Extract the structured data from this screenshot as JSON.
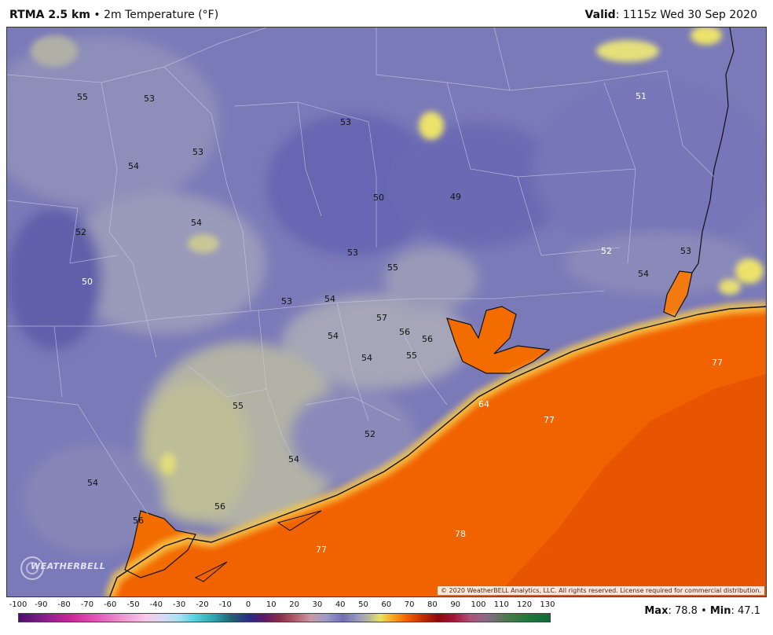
{
  "header": {
    "model": "RTMA 2.5 km",
    "separator": "•",
    "variable": "2m Temperature (°F)",
    "valid_label": "Valid",
    "valid_time": ": 1115z Wed 30 Sep 2020"
  },
  "map": {
    "copyright": "© 2020 WeatherBELL Analytics, LLC. All rights reserved. License required for commercial distribution.",
    "logo_text": "WEATHERBELL",
    "point_labels": [
      {
        "text": "55"
      },
      {
        "text": "53"
      },
      {
        "text": "53"
      },
      {
        "text": "54"
      },
      {
        "text": "53"
      },
      {
        "text": "50"
      },
      {
        "text": "49"
      },
      {
        "text": "51"
      },
      {
        "text": "52"
      },
      {
        "text": "54"
      },
      {
        "text": "50"
      },
      {
        "text": "53"
      },
      {
        "text": "55"
      },
      {
        "text": "53"
      },
      {
        "text": "54"
      },
      {
        "text": "57"
      },
      {
        "text": "56"
      },
      {
        "text": "56"
      },
      {
        "text": "54"
      },
      {
        "text": "54"
      },
      {
        "text": "55"
      },
      {
        "text": "52"
      },
      {
        "text": "53"
      },
      {
        "text": "54"
      },
      {
        "text": "64"
      },
      {
        "text": "77"
      },
      {
        "text": "77"
      },
      {
        "text": "55"
      },
      {
        "text": "52"
      },
      {
        "text": "54"
      },
      {
        "text": "54"
      },
      {
        "text": "56"
      },
      {
        "text": "56"
      },
      {
        "text": "77"
      },
      {
        "text": "78"
      }
    ]
  },
  "legend": {
    "ticks": [
      "-100",
      "-90",
      "-80",
      "-70",
      "-60",
      "-50",
      "-40",
      "-30",
      "-20",
      "-10",
      "0",
      "10",
      "20",
      "30",
      "40",
      "50",
      "60",
      "70",
      "80",
      "90",
      "100",
      "110",
      "120",
      "130"
    ],
    "range": [
      -100,
      130
    ]
  },
  "stats": {
    "max_label": "Max",
    "max_value": ": 78.8",
    "separator": " • ",
    "min_label": "Min",
    "min_value": ": 47.1"
  },
  "colors": {
    "cold_land": "#6f6fb8",
    "mild_land": "#9c9cbe",
    "warm_land": "#b9b99b",
    "warm_spot": "#e8e26a",
    "gulf": "#f26300",
    "gulf_deep": "#e24f00"
  }
}
